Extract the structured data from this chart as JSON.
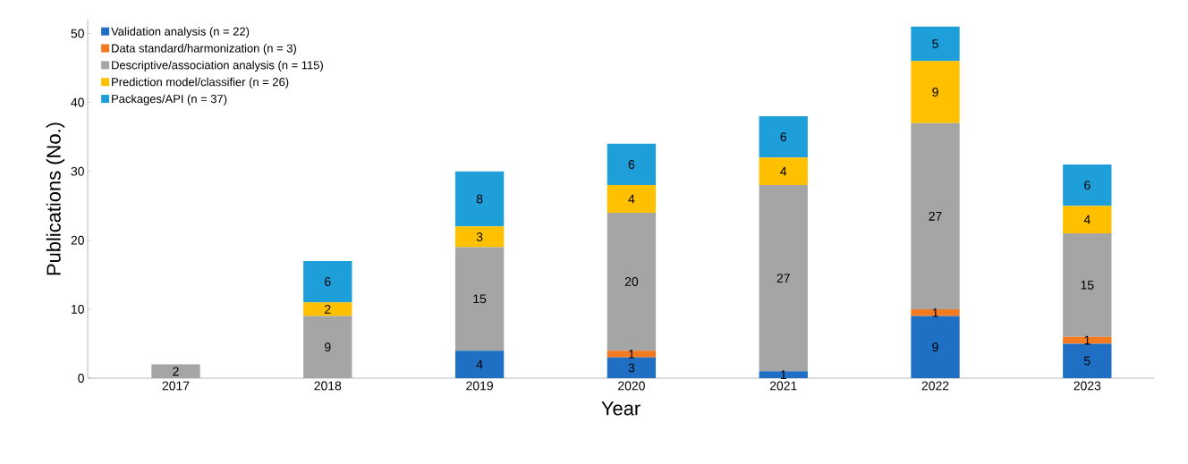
{
  "chart_data": {
    "type": "bar",
    "stacked": true,
    "xlabel": "Year",
    "ylabel": "Publications (No.)",
    "categories": [
      "2017",
      "2018",
      "2019",
      "2020",
      "2021",
      "2022",
      "2023"
    ],
    "ylim": [
      0,
      52
    ],
    "yticks": [
      0,
      10,
      20,
      30,
      40,
      50
    ],
    "grid": false,
    "legend": "top left",
    "series": [
      {
        "name": "Validation analysis (n = 22)",
        "color": "#1f6fc5",
        "values": [
          0,
          0,
          4,
          3,
          1,
          9,
          5
        ],
        "value_labels": [
          null,
          null,
          "4",
          "3",
          "1",
          "9",
          "5"
        ]
      },
      {
        "name": "Data standard/harmonization (n = 3)",
        "color": "#f47a20",
        "values": [
          0,
          0,
          0,
          1,
          0,
          1,
          1
        ],
        "value_labels": [
          null,
          null,
          null,
          "1",
          null,
          "1",
          "1"
        ]
      },
      {
        "name": "Descriptive/association analysis (n = 115)",
        "color": "#a5a5a5",
        "values": [
          2,
          9,
          15,
          20,
          27,
          27,
          15
        ],
        "value_labels": [
          "2",
          "9",
          "15",
          "20",
          "27",
          "27",
          "15"
        ]
      },
      {
        "name": "Prediction model/classifier (n = 26)",
        "color": "#ffc000",
        "values": [
          0,
          2,
          3,
          4,
          4,
          9,
          4
        ],
        "value_labels": [
          null,
          "2",
          "3",
          "4",
          "4",
          "9",
          "4"
        ]
      },
      {
        "name": "Packages/API (n = 37)",
        "color": "#1f9fd9",
        "values": [
          0,
          6,
          8,
          6,
          6,
          5,
          6
        ],
        "value_labels": [
          null,
          "6",
          "8",
          "6",
          "6",
          "5",
          "6"
        ]
      }
    ]
  }
}
